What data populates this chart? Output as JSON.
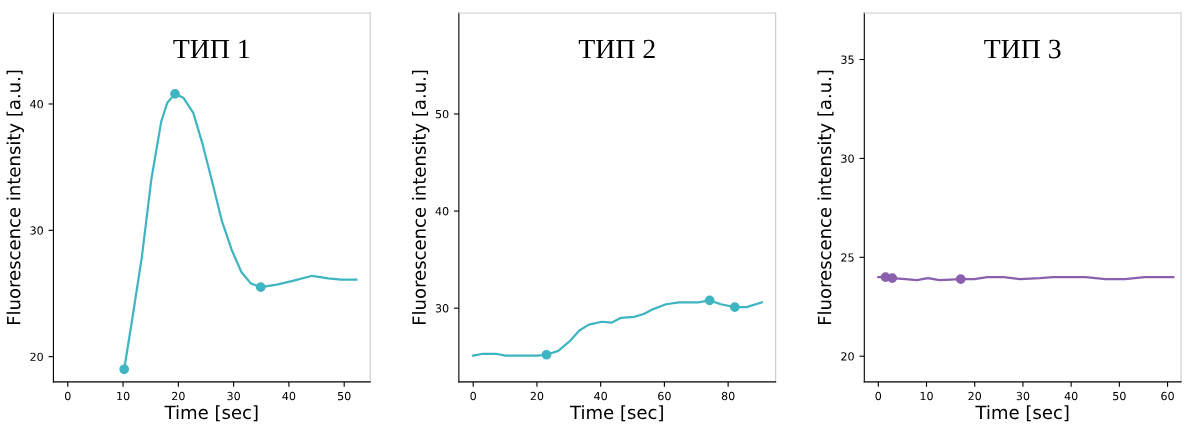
{
  "chart_data": [
    {
      "type": "line",
      "title": "ТИП 1",
      "xlabel": "Time [sec]",
      "ylabel": "Fluorescence intensity [a.u.]",
      "xlim": [
        -2.6,
        54.7
      ],
      "ylim": [
        18.0,
        47.2
      ],
      "xticks": [
        0,
        10,
        20,
        30,
        40,
        50
      ],
      "yticks": [
        20,
        30,
        40
      ],
      "grid": false,
      "legend": false,
      "marker": "none",
      "series": [
        {
          "color": "#3fb5c2",
          "x": [
            10.2,
            11.6,
            13.4,
            15.1,
            16.9,
            18.0,
            19.4,
            20.9,
            22.7,
            24.4,
            26.2,
            27.9,
            29.7,
            31.4,
            33.1,
            34.9,
            37.8,
            40.7,
            44.2,
            47.1,
            49.4,
            52.2
          ],
          "values": [
            19.0,
            22.8,
            27.9,
            34.0,
            38.6,
            40.1,
            40.8,
            40.5,
            39.3,
            36.8,
            33.7,
            30.7,
            28.4,
            26.7,
            25.8,
            25.5,
            25.7,
            26.0,
            26.4,
            26.2,
            26.1,
            26.1
          ]
        },
        {
          "type": "scatter",
          "marker": "circle",
          "color": "#3fb5c2",
          "x": [
            10.2,
            19.4,
            34.9
          ],
          "values": [
            19.0,
            40.8,
            25.5
          ]
        }
      ]
    },
    {
      "type": "line",
      "title": "ТИП 2",
      "xlabel": "Time [sec]",
      "ylabel": "Fluorescence intensity [a.u.]",
      "xlim": [
        -4.5,
        94.9
      ],
      "ylim": [
        22.4,
        60.4
      ],
      "xticks": [
        0,
        20,
        40,
        60,
        80
      ],
      "yticks": [
        30,
        40,
        50
      ],
      "grid": false,
      "legend": false,
      "marker": "none",
      "series": [
        {
          "color": "#3fb5c2",
          "x": [
            0,
            3.0,
            7.1,
            10.1,
            14.1,
            20.2,
            23.0,
            26.7,
            30.3,
            33.3,
            36.3,
            40.4,
            43.4,
            46.4,
            50.5,
            53.5,
            56.5,
            60.5,
            64.6,
            70.6,
            74.2,
            77.7,
            82.1,
            85.8,
            90.6
          ],
          "values": [
            25.1,
            25.3,
            25.3,
            25.1,
            25.1,
            25.1,
            25.2,
            25.6,
            26.6,
            27.7,
            28.3,
            28.6,
            28.5,
            29.0,
            29.1,
            29.4,
            29.9,
            30.4,
            30.6,
            30.6,
            30.8,
            30.4,
            30.1,
            30.1,
            30.6
          ]
        },
        {
          "type": "scatter",
          "marker": "circle",
          "color": "#3fb5c2",
          "x": [
            23.0,
            74.2,
            82.1
          ],
          "values": [
            25.2,
            30.8,
            30.1
          ]
        }
      ]
    },
    {
      "type": "line",
      "title": "ТИП 3",
      "xlabel": "Time [sec]",
      "ylabel": "Fluorescence intensity [a.u.]",
      "xlim": [
        -2.9,
        62.8
      ],
      "ylim": [
        18.7,
        37.35
      ],
      "xticks": [
        0,
        10,
        20,
        30,
        40,
        50,
        60
      ],
      "yticks": [
        20,
        25,
        30,
        35
      ],
      "grid": false,
      "legend": false,
      "marker": "none",
      "series": [
        {
          "color": "#8a5fae",
          "x": [
            0,
            1.5,
            2.9,
            5.6,
            8.0,
            10.3,
            12.7,
            17.1,
            19.9,
            22.6,
            26.0,
            29.4,
            33.5,
            36.2,
            43.0,
            47.1,
            51.2,
            55.2,
            61.2
          ],
          "values": [
            24.0,
            24.0,
            23.95,
            23.9,
            23.85,
            23.95,
            23.85,
            23.9,
            23.9,
            24.0,
            24.0,
            23.9,
            23.95,
            24.0,
            24.0,
            23.9,
            23.9,
            24.0,
            24.0
          ]
        },
        {
          "type": "scatter",
          "marker": "circle",
          "color": "#8a5fae",
          "x": [
            1.5,
            2.9,
            17.1
          ],
          "values": [
            24.0,
            23.95,
            23.9
          ]
        }
      ]
    }
  ]
}
